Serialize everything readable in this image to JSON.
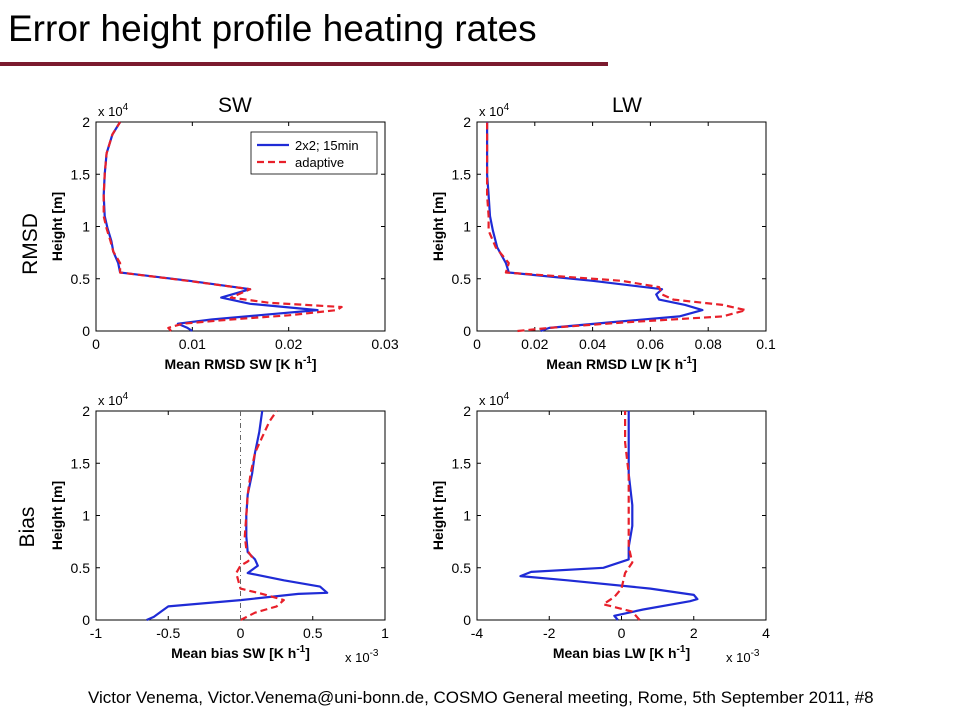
{
  "slide": {
    "title": "Error height profile heating rates",
    "footer": "Victor Venema, Victor.Venema@uni-bonn.de, COSMO General meeting, Rome, 5th September 2011, #8",
    "col_labels": [
      "SW",
      "LW"
    ],
    "row_labels": [
      "RMSD",
      "Bias"
    ],
    "accent_color": "#7b1a2e"
  },
  "chart_data": [
    {
      "id": "rmsd_sw",
      "type": "line",
      "xlabel": "Mean RMSD SW  [K h^-1]",
      "ylabel": "Height [m]",
      "xlim": [
        0,
        0.03
      ],
      "ylim": [
        0,
        20000
      ],
      "xticks": [
        "0",
        "0.01",
        "0.02",
        "0.03"
      ],
      "yticks": [
        "0",
        "0.5",
        "1",
        "1.5",
        "2"
      ],
      "y_multiplier": "x 10^4",
      "x_multiplier": "",
      "legend": "top-right",
      "series": [
        {
          "name": "2x2; 15min",
          "color": "#1f2bd6",
          "dash": "solid",
          "x": [
            0.01,
            0.0095,
            0.0085,
            0.012,
            0.018,
            0.023,
            0.016,
            0.013,
            0.016,
            0.0097,
            0.0025,
            0.0023,
            0.0018,
            0.0016,
            0.0012,
            0.0009,
            0.0008,
            0.0009,
            0.0011,
            0.0017,
            0.0025
          ],
          "y": [
            0,
            300,
            700,
            1100,
            1600,
            2000,
            2600,
            3200,
            4000,
            4800,
            5600,
            6500,
            7600,
            8600,
            9800,
            11000,
            13000,
            15000,
            17000,
            18800,
            20000
          ]
        },
        {
          "name": "adaptive",
          "color": "#e8202a",
          "dash": "dashed",
          "x": [
            0.0078,
            0.0075,
            0.009,
            0.014,
            0.02,
            0.025,
            0.0255,
            0.018,
            0.014,
            0.016,
            0.0095,
            0.0025,
            0.0025,
            0.0018,
            0.0015,
            0.0011,
            0.0008,
            0.0008,
            0.0009,
            0.0011,
            0.0017,
            0.0025
          ],
          "y": [
            0,
            300,
            700,
            1100,
            1500,
            2000,
            2300,
            2700,
            3200,
            4000,
            4800,
            5600,
            6500,
            7600,
            8600,
            9800,
            11000,
            13000,
            15000,
            17000,
            18800,
            20000
          ]
        }
      ]
    },
    {
      "id": "rmsd_lw",
      "type": "line",
      "xlabel": "Mean RMSD LW  [K h^-1]",
      "ylabel": "Height [m]",
      "xlim": [
        0,
        0.1
      ],
      "ylim": [
        0,
        20000
      ],
      "xticks": [
        "0",
        "0.02",
        "0.04",
        "0.06",
        "0.08",
        "0.1"
      ],
      "yticks": [
        "0",
        "0.5",
        "1",
        "1.5",
        "2"
      ],
      "y_multiplier": "x 10^4",
      "x_multiplier": "",
      "legend": "none",
      "series": [
        {
          "name": "2x2; 15min",
          "color": "#1f2bd6",
          "dash": "solid",
          "x": [
            0.022,
            0.025,
            0.045,
            0.07,
            0.078,
            0.072,
            0.063,
            0.062,
            0.064,
            0.04,
            0.011,
            0.01,
            0.007,
            0.0055,
            0.0045,
            0.004,
            0.0035,
            0.0035,
            0.0035,
            0.0035
          ],
          "y": [
            0,
            300,
            800,
            1400,
            2000,
            2500,
            3000,
            3500,
            4000,
            4800,
            5600,
            6500,
            8000,
            9600,
            11000,
            13000,
            15000,
            17000,
            19000,
            20000
          ]
        },
        {
          "name": "adaptive",
          "color": "#e8202a",
          "dash": "dashed",
          "x": [
            0.014,
            0.025,
            0.05,
            0.085,
            0.093,
            0.085,
            0.068,
            0.064,
            0.063,
            0.05,
            0.01,
            0.011,
            0.0065,
            0.004,
            0.004,
            0.0035,
            0.0035,
            0.0035,
            0.0035
          ],
          "y": [
            0,
            300,
            800,
            1400,
            2000,
            2500,
            3000,
            3500,
            4200,
            4800,
            5600,
            6500,
            8000,
            9600,
            11000,
            13000,
            15000,
            17000,
            20000
          ]
        }
      ]
    },
    {
      "id": "bias_sw",
      "type": "line",
      "xlabel": "Mean bias SW [K h^-1]",
      "ylabel": "Height [m]",
      "xlim": [
        -0.001,
        0.001
      ],
      "ylim": [
        0,
        20000
      ],
      "xticks": [
        "-1",
        "-0.5",
        "0",
        "0.5",
        "1"
      ],
      "yticks": [
        "0",
        "0.5",
        "1",
        "1.5",
        "2"
      ],
      "y_multiplier": "x 10^4",
      "x_multiplier": "x 10^-3",
      "legend": "none",
      "series": [
        {
          "name": "2x2; 15min",
          "color": "#1f2bd6",
          "dash": "solid",
          "x": [
            -0.00065,
            -0.0006,
            -0.00055,
            -0.0005,
            0.0,
            0.0004,
            0.0006,
            0.00055,
            0.0003,
            5e-05,
            0.00012,
            0.0001,
            5e-05,
            4e-05,
            4e-05,
            5e-05,
            8e-05,
            0.0001,
            0.00013,
            0.00015
          ],
          "y": [
            0,
            300,
            800,
            1300,
            1900,
            2500,
            2600,
            3200,
            3800,
            4500,
            5200,
            5800,
            6500,
            8000,
            10000,
            12000,
            14000,
            16000,
            18000,
            20000
          ]
        },
        {
          "name": "adaptive",
          "color": "#e8202a",
          "dash": "dashed",
          "x": [
            0.0,
            0.0001,
            0.00025,
            0.0003,
            0.00015,
            0.0,
            -3e-05,
            0.0,
            5e-05,
            8e-05,
            4e-05,
            3e-05,
            4e-05,
            5e-05,
            7e-05,
            0.0001,
            0.00015,
            0.0002,
            0.00025
          ],
          "y": [
            0,
            700,
            1300,
            1900,
            2500,
            3000,
            4500,
            5200,
            5600,
            6000,
            6800,
            8000,
            10000,
            12000,
            14000,
            16000,
            17500,
            19000,
            20000
          ]
        },
        {
          "name": "",
          "color": "#666666",
          "dash": "dashdot",
          "x": [
            0.0,
            0.0
          ],
          "y": [
            0,
            20000
          ]
        }
      ]
    },
    {
      "id": "bias_lw",
      "type": "line",
      "xlabel": "Mean bias LW [K h^-1]",
      "ylabel": "Height [m]",
      "xlim": [
        -0.004,
        0.004
      ],
      "ylim": [
        0,
        20000
      ],
      "xticks": [
        "-4",
        "-2",
        "0",
        "2",
        "4"
      ],
      "yticks": [
        "0",
        "0.5",
        "1",
        "1.5",
        "2"
      ],
      "y_multiplier": "x 10^4",
      "x_multiplier": "x 10^-3",
      "legend": "none",
      "series": [
        {
          "name": "2x2; 15min",
          "color": "#1f2bd6",
          "dash": "solid",
          "x": [
            -0.0001,
            -0.0002,
            0.0006,
            0.0019,
            0.0021,
            0.002,
            0.0008,
            -0.0015,
            -0.0028,
            -0.0025,
            -0.0005,
            0.0002,
            0.0002,
            0.0003,
            0.0003,
            0.0002,
            0.0002,
            0.0002
          ],
          "y": [
            0,
            400,
            1000,
            1800,
            2000,
            2400,
            3000,
            3800,
            4200,
            4600,
            5000,
            5800,
            7000,
            9000,
            11000,
            14000,
            17000,
            20000
          ]
        },
        {
          "name": "adaptive",
          "color": "#e8202a",
          "dash": "dashed",
          "x": [
            0.0005,
            0.0003,
            -0.0005,
            -0.0002,
            0.0,
            0.0001,
            0.0003,
            0.0002,
            0.0002,
            0.0002,
            0.0001,
            0.0001
          ],
          "y": [
            0,
            800,
            1500,
            2200,
            3000,
            4500,
            5500,
            7000,
            10000,
            14000,
            17000,
            20000
          ]
        }
      ]
    }
  ]
}
